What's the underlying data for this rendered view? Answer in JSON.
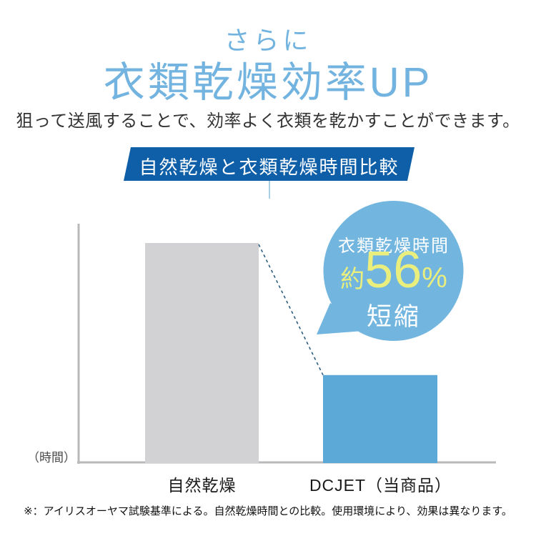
{
  "page": {
    "kicker": "さらに",
    "title": "衣類乾燥効率UP",
    "subtitle": "狙って送風することで、効率よく衣類を乾かすことができます。",
    "footnote": "※：アイリスオーヤマ試験基準による。自然乾燥時間との比較。使用環境により、効果は異なります。"
  },
  "banner": {
    "label": "自然乾燥と衣類乾燥時間比較"
  },
  "bubble": {
    "line1": "衣類乾燥時間",
    "approx": "約",
    "value": "56",
    "unit": "%",
    "line2": "短縮"
  },
  "colors": {
    "heading_blue": "#72b3df",
    "banner_blue": "#0e5fa8",
    "bubble_blue": "#72b6e0",
    "highlight_yellow_green": "#e9ee7d",
    "axis_gray": "#b9b9bb",
    "dashed_line": "#2e5e80"
  },
  "chart_data": {
    "type": "bar",
    "categories": [
      "自然乾燥",
      "DCJET（当商品）"
    ],
    "values": [
      100,
      40
    ],
    "series_colors": [
      "#d2d2d4",
      "#5ca9d8"
    ],
    "title": "自然乾燥と衣類乾燥時間比較",
    "xlabel": "",
    "ylabel": "（時間）",
    "ylim": [
      0,
      109
    ],
    "grid": false,
    "legend": false,
    "annotation": "衣類乾燥時間 約56% 短縮"
  }
}
